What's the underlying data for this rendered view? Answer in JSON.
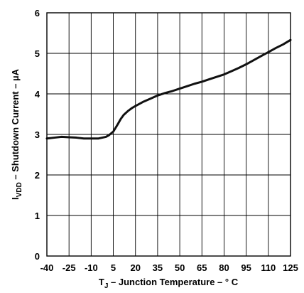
{
  "chart_data": {
    "type": "line",
    "xlabel": {
      "main": "T",
      "sub": "J",
      "rest": " – Junction Temperature – ° C"
    },
    "ylabel": {
      "main": "I",
      "sub": "VDD",
      "rest": " – Shutdown Current – µA"
    },
    "xlim": [
      -40,
      125
    ],
    "ylim": [
      0,
      6
    ],
    "x_ticks": [
      -40,
      -25,
      -10,
      5,
      20,
      35,
      50,
      65,
      80,
      95,
      110,
      125
    ],
    "y_ticks": [
      0,
      1,
      2,
      3,
      4,
      5,
      6
    ],
    "grid": true,
    "series": [
      {
        "x": [
          -40,
          -35,
          -30,
          -25,
          -20,
          -15,
          -10,
          -5,
          0,
          2,
          5,
          8,
          10,
          12,
          15,
          18,
          20,
          25,
          30,
          35,
          40,
          45,
          50,
          55,
          60,
          65,
          70,
          75,
          80,
          85,
          90,
          95,
          100,
          105,
          110,
          115,
          120,
          125
        ],
        "y": [
          2.9,
          2.92,
          2.94,
          2.93,
          2.92,
          2.9,
          2.9,
          2.9,
          2.94,
          2.98,
          3.07,
          3.25,
          3.38,
          3.48,
          3.58,
          3.66,
          3.7,
          3.8,
          3.88,
          3.96,
          4.02,
          4.07,
          4.13,
          4.19,
          4.25,
          4.3,
          4.36,
          4.42,
          4.48,
          4.56,
          4.64,
          4.73,
          4.83,
          4.93,
          5.03,
          5.13,
          5.22,
          5.33
        ]
      }
    ]
  }
}
